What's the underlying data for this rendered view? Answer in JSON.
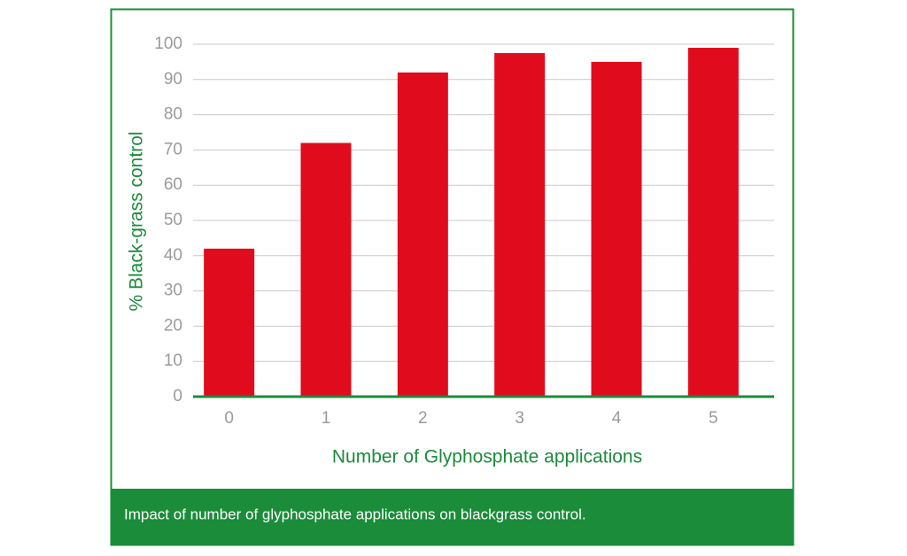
{
  "chart_data": {
    "type": "bar",
    "ylabel": "% Black-grass control",
    "xlabel": "Number of Glyphosphate applications",
    "caption": "Impact of number of glyphosphate applications on blackgrass control.",
    "categories": [
      "0",
      "1",
      "2",
      "3",
      "4",
      "5"
    ],
    "values": [
      42,
      72,
      92,
      97.5,
      95,
      99
    ],
    "color": "#e00b1c",
    "ylim": [
      0,
      100
    ],
    "yticks": [
      0,
      10,
      20,
      30,
      40,
      50,
      60,
      70,
      80,
      90,
      100
    ],
    "grid": true
  }
}
